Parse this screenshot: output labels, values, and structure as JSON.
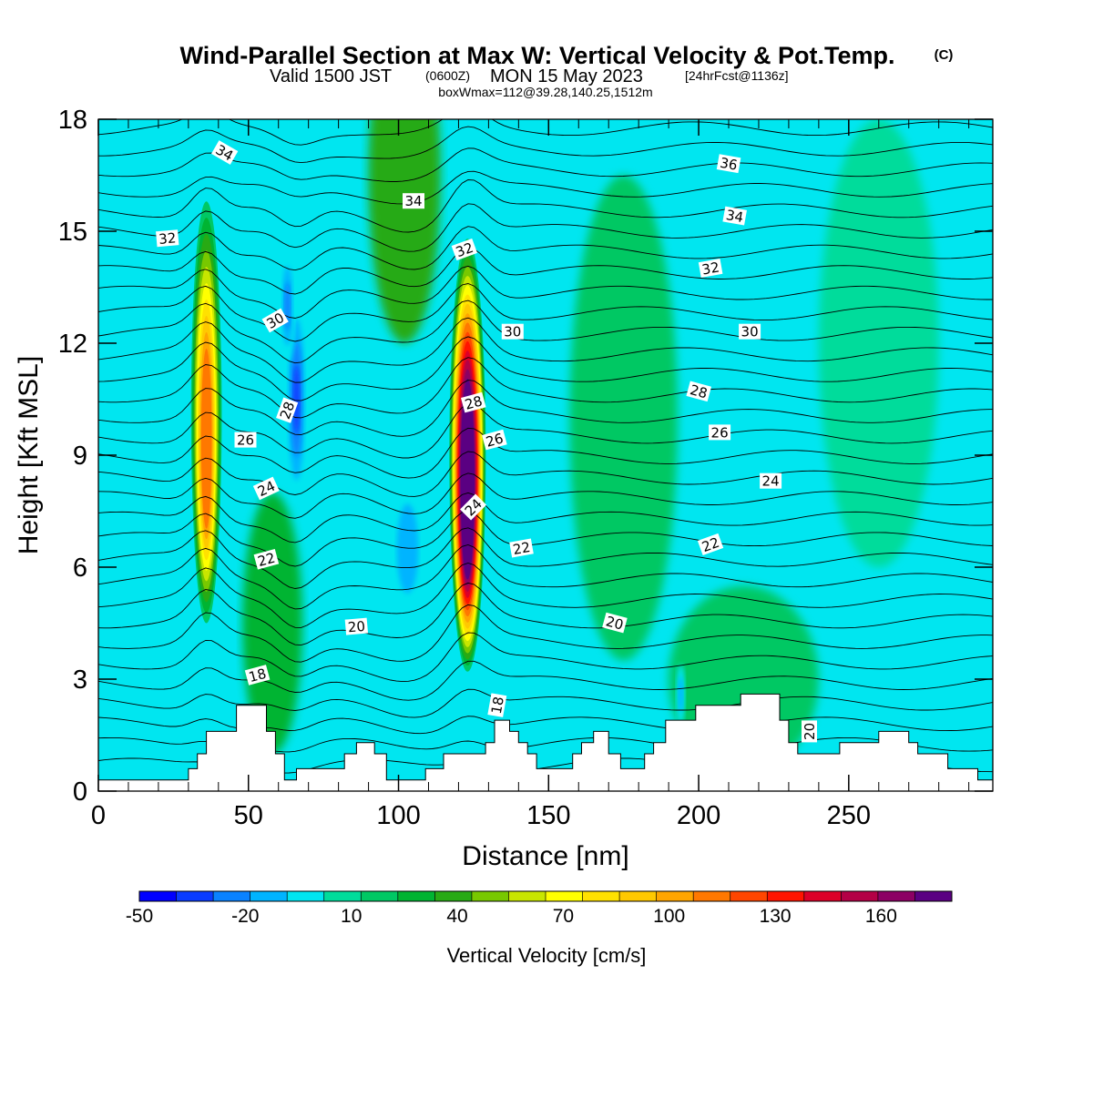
{
  "header": {
    "title": "Wind-Parallel Section at Max W: Vertical Velocity & Pot.Temp.",
    "title_mark": "(C)",
    "valid_prefix": "Valid 1500 JST",
    "valid_utc": "(0600Z)",
    "valid_date": "MON 15 May 2023",
    "forecast_tag": "[24hrFcst@1136z]",
    "box_info": "boxWmax=112@39.28,140.25,1512m"
  },
  "colors": {
    "palette": [
      "#0000ff",
      "#0a3cff",
      "#0a82ff",
      "#00b4ff",
      "#00e6f0",
      "#00dc9b",
      "#00c864",
      "#00b432",
      "#28aa14",
      "#78c800",
      "#c8e600",
      "#ffff00",
      "#ffe100",
      "#ffc800",
      "#ffa500",
      "#ff7800",
      "#ff4600",
      "#ff1400",
      "#dc0028",
      "#b40046",
      "#8c0064",
      "#5a0082"
    ],
    "background_field": "#00e6f0",
    "terrain": "#ffffff",
    "isentropes": "#000000"
  },
  "chart_data": {
    "type": "heatmap",
    "x_axis": {
      "label": "Distance [nm]",
      "range": [
        0,
        298
      ],
      "ticks": [
        0,
        50,
        100,
        150,
        200,
        250
      ],
      "tick_labels": [
        "0",
        "50",
        "100",
        "150",
        "200",
        "250"
      ],
      "minor_step": 10
    },
    "y_axis": {
      "label": "Height [Kft MSL]",
      "range": [
        0,
        18
      ],
      "ticks": [
        0,
        3,
        6,
        9,
        12,
        15,
        18
      ],
      "tick_labels": [
        "0",
        "3",
        "6",
        "9",
        "12",
        "15",
        "18"
      ]
    },
    "colorbar": {
      "label": "Vertical Velocity [cm/s]",
      "min": -50,
      "max": 180,
      "step": 10,
      "tick_values": [
        -50,
        -20,
        10,
        40,
        70,
        100,
        130,
        160
      ],
      "tick_labels": [
        "-50",
        "-20",
        "10",
        "40",
        "70",
        "100",
        "130",
        "160"
      ]
    },
    "updrafts": [
      {
        "x": 36,
        "y_bottom": 4.5,
        "y_top": 15.8,
        "peak": 95,
        "width_nm": 3.2
      },
      {
        "x": 123,
        "y_bottom": 3.2,
        "y_top": 14.8,
        "peak": 175,
        "width_nm": 3.8
      }
    ],
    "downdrafts": [
      {
        "x": 66,
        "y": 10.5,
        "rx": 3.5,
        "ry": 2.8,
        "min": -35
      },
      {
        "x": 63,
        "y": 13.0,
        "rx": 2.5,
        "ry": 1.5,
        "min": -25
      },
      {
        "x": 103,
        "y": 6.5,
        "rx": 6.0,
        "ry": 2.0,
        "min": -20
      },
      {
        "x": 194,
        "y": 2.6,
        "rx": 1.5,
        "ry": 0.8,
        "min": -20
      },
      {
        "x": 295,
        "y": 4.0,
        "rx": 3.0,
        "ry": 1.5,
        "min": -10
      }
    ],
    "green_zones": [
      {
        "x": 102,
        "y": 16.5,
        "rx": 12,
        "ry": 4.5,
        "value": 30
      },
      {
        "x": 58,
        "y": 4.5,
        "rx": 10,
        "ry": 3.5,
        "value": 20
      },
      {
        "x": 175,
        "y": 10.0,
        "rx": 18,
        "ry": 6.5,
        "value": 10
      },
      {
        "x": 215,
        "y": 3.0,
        "rx": 25,
        "ry": 2.5,
        "value": 18
      },
      {
        "x": 260,
        "y": 12.0,
        "rx": 20,
        "ry": 6.0,
        "value": 8
      }
    ],
    "terrain_profile": [
      {
        "x": 0,
        "h": 0.3
      },
      {
        "x": 30,
        "h": 0.3
      },
      {
        "x": 30,
        "h": 0.6
      },
      {
        "x": 33,
        "h": 0.6
      },
      {
        "x": 33,
        "h": 1.0
      },
      {
        "x": 36,
        "h": 1.0
      },
      {
        "x": 36,
        "h": 1.6
      },
      {
        "x": 46,
        "h": 1.6
      },
      {
        "x": 46,
        "h": 2.3
      },
      {
        "x": 56,
        "h": 2.3
      },
      {
        "x": 56,
        "h": 1.6
      },
      {
        "x": 59,
        "h": 1.6
      },
      {
        "x": 59,
        "h": 1.0
      },
      {
        "x": 62,
        "h": 1.0
      },
      {
        "x": 62,
        "h": 0.3
      },
      {
        "x": 66,
        "h": 0.3
      },
      {
        "x": 66,
        "h": 0.6
      },
      {
        "x": 82,
        "h": 0.6
      },
      {
        "x": 82,
        "h": 1.0
      },
      {
        "x": 86,
        "h": 1.0
      },
      {
        "x": 86,
        "h": 1.3
      },
      {
        "x": 92,
        "h": 1.3
      },
      {
        "x": 92,
        "h": 1.0
      },
      {
        "x": 96,
        "h": 1.0
      },
      {
        "x": 96,
        "h": 0.3
      },
      {
        "x": 109,
        "h": 0.3
      },
      {
        "x": 109,
        "h": 0.6
      },
      {
        "x": 115,
        "h": 0.6
      },
      {
        "x": 115,
        "h": 1.0
      },
      {
        "x": 129,
        "h": 1.0
      },
      {
        "x": 129,
        "h": 1.3
      },
      {
        "x": 132,
        "h": 1.3
      },
      {
        "x": 132,
        "h": 1.9
      },
      {
        "x": 137,
        "h": 1.9
      },
      {
        "x": 137,
        "h": 1.6
      },
      {
        "x": 140,
        "h": 1.6
      },
      {
        "x": 140,
        "h": 1.3
      },
      {
        "x": 143,
        "h": 1.3
      },
      {
        "x": 143,
        "h": 1.0
      },
      {
        "x": 146,
        "h": 1.0
      },
      {
        "x": 146,
        "h": 0.6
      },
      {
        "x": 158,
        "h": 0.6
      },
      {
        "x": 158,
        "h": 1.0
      },
      {
        "x": 161,
        "h": 1.0
      },
      {
        "x": 161,
        "h": 1.3
      },
      {
        "x": 165,
        "h": 1.3
      },
      {
        "x": 165,
        "h": 1.6
      },
      {
        "x": 170,
        "h": 1.6
      },
      {
        "x": 170,
        "h": 1.0
      },
      {
        "x": 174,
        "h": 1.0
      },
      {
        "x": 174,
        "h": 0.6
      },
      {
        "x": 182,
        "h": 0.6
      },
      {
        "x": 182,
        "h": 1.0
      },
      {
        "x": 185,
        "h": 1.0
      },
      {
        "x": 185,
        "h": 1.3
      },
      {
        "x": 189,
        "h": 1.3
      },
      {
        "x": 189,
        "h": 1.9
      },
      {
        "x": 199,
        "h": 1.9
      },
      {
        "x": 199,
        "h": 2.3
      },
      {
        "x": 214,
        "h": 2.3
      },
      {
        "x": 214,
        "h": 2.6
      },
      {
        "x": 227,
        "h": 2.6
      },
      {
        "x": 227,
        "h": 1.9
      },
      {
        "x": 230,
        "h": 1.9
      },
      {
        "x": 230,
        "h": 1.3
      },
      {
        "x": 233,
        "h": 1.3
      },
      {
        "x": 233,
        "h": 1.0
      },
      {
        "x": 247,
        "h": 1.0
      },
      {
        "x": 247,
        "h": 1.3
      },
      {
        "x": 260,
        "h": 1.3
      },
      {
        "x": 260,
        "h": 1.6
      },
      {
        "x": 270,
        "h": 1.6
      },
      {
        "x": 270,
        "h": 1.3
      },
      {
        "x": 273,
        "h": 1.3
      },
      {
        "x": 273,
        "h": 1.0
      },
      {
        "x": 283,
        "h": 1.0
      },
      {
        "x": 283,
        "h": 0.6
      },
      {
        "x": 293,
        "h": 0.6
      },
      {
        "x": 293,
        "h": 0.3
      },
      {
        "x": 298,
        "h": 0.3
      }
    ],
    "isentrope_labels": [
      {
        "text": "34",
        "x": 42,
        "y": 17.1,
        "angle": 30
      },
      {
        "text": "32",
        "x": 23,
        "y": 14.8,
        "angle": -5
      },
      {
        "text": "34",
        "x": 105,
        "y": 15.8,
        "angle": 0
      },
      {
        "text": "32",
        "x": 122,
        "y": 14.5,
        "angle": -20
      },
      {
        "text": "36",
        "x": 210,
        "y": 16.8,
        "angle": 10
      },
      {
        "text": "34",
        "x": 212,
        "y": 15.4,
        "angle": 10
      },
      {
        "text": "32",
        "x": 204,
        "y": 14.0,
        "angle": -10
      },
      {
        "text": "30",
        "x": 59,
        "y": 12.6,
        "angle": -30
      },
      {
        "text": "30",
        "x": 138,
        "y": 12.3,
        "angle": 0
      },
      {
        "text": "30",
        "x": 217,
        "y": 12.3,
        "angle": 0
      },
      {
        "text": "28",
        "x": 63,
        "y": 10.2,
        "angle": -70
      },
      {
        "text": "28",
        "x": 125,
        "y": 10.4,
        "angle": -15
      },
      {
        "text": "28",
        "x": 200,
        "y": 10.7,
        "angle": 15
      },
      {
        "text": "26",
        "x": 49,
        "y": 9.4,
        "angle": 0
      },
      {
        "text": "26",
        "x": 132,
        "y": 9.4,
        "angle": -15
      },
      {
        "text": "26",
        "x": 207,
        "y": 9.6,
        "angle": 0
      },
      {
        "text": "24",
        "x": 56,
        "y": 8.1,
        "angle": -25
      },
      {
        "text": "24",
        "x": 125,
        "y": 7.6,
        "angle": -45
      },
      {
        "text": "24",
        "x": 224,
        "y": 8.3,
        "angle": 0
      },
      {
        "text": "22",
        "x": 56,
        "y": 6.2,
        "angle": -15
      },
      {
        "text": "22",
        "x": 141,
        "y": 6.5,
        "angle": -10
      },
      {
        "text": "22",
        "x": 204,
        "y": 6.6,
        "angle": -20
      },
      {
        "text": "20",
        "x": 86,
        "y": 4.4,
        "angle": -5
      },
      {
        "text": "20",
        "x": 172,
        "y": 4.5,
        "angle": 15
      },
      {
        "text": "20",
        "x": 237,
        "y": 1.6,
        "angle": -90
      },
      {
        "text": "18",
        "x": 53,
        "y": 3.1,
        "angle": -15
      },
      {
        "text": "18",
        "x": 133,
        "y": 2.3,
        "angle": -80
      }
    ]
  }
}
